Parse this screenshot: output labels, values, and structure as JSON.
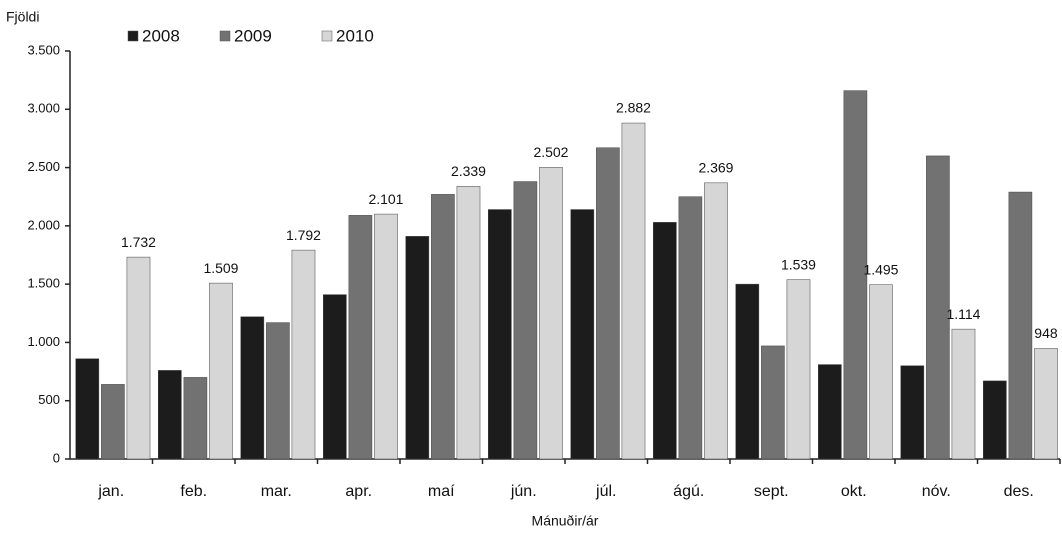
{
  "chart_data": {
    "type": "bar",
    "y_label": "Fjöldi",
    "x_label": "Mánuðir/ár",
    "categories": [
      "jan.",
      "feb.",
      "mar.",
      "apr.",
      "maí",
      "jún.",
      "júl.",
      "ágú.",
      "sept.",
      "okt.",
      "nóv.",
      "des."
    ],
    "series": [
      {
        "name": "2008",
        "color": "#1c1c1c",
        "values": [
          860,
          760,
          1220,
          1410,
          1910,
          2140,
          2140,
          2030,
          1500,
          810,
          800,
          670
        ]
      },
      {
        "name": "2009",
        "color": "#727272",
        "values": [
          640,
          700,
          1170,
          2090,
          2270,
          2380,
          2670,
          2250,
          970,
          3160,
          2600,
          2290
        ]
      },
      {
        "name": "2010",
        "color": "#d6d6d6",
        "values": [
          1732,
          1509,
          1792,
          2101,
          2339,
          2502,
          2882,
          2369,
          1539,
          1495,
          1114,
          948
        ],
        "value_labels": [
          "1.732",
          "1.509",
          "1.792",
          "2.101",
          "2.339",
          "2.502",
          "2.882",
          "2.369",
          "1.539",
          "1.495",
          "1.114",
          "948"
        ]
      }
    ],
    "ylim": [
      0,
      3500
    ],
    "yticks": [
      0,
      500,
      {
        "value": 1000,
        "label": "1.000"
      },
      {
        "value": 1500,
        "label": "1.500"
      },
      {
        "value": 2000,
        "label": "2.000"
      },
      {
        "value": 2500,
        "label": "2.500"
      },
      {
        "value": 3000,
        "label": "3.000"
      },
      {
        "value": 3500,
        "label": "3.500"
      }
    ],
    "legend": "top",
    "grid": false
  }
}
